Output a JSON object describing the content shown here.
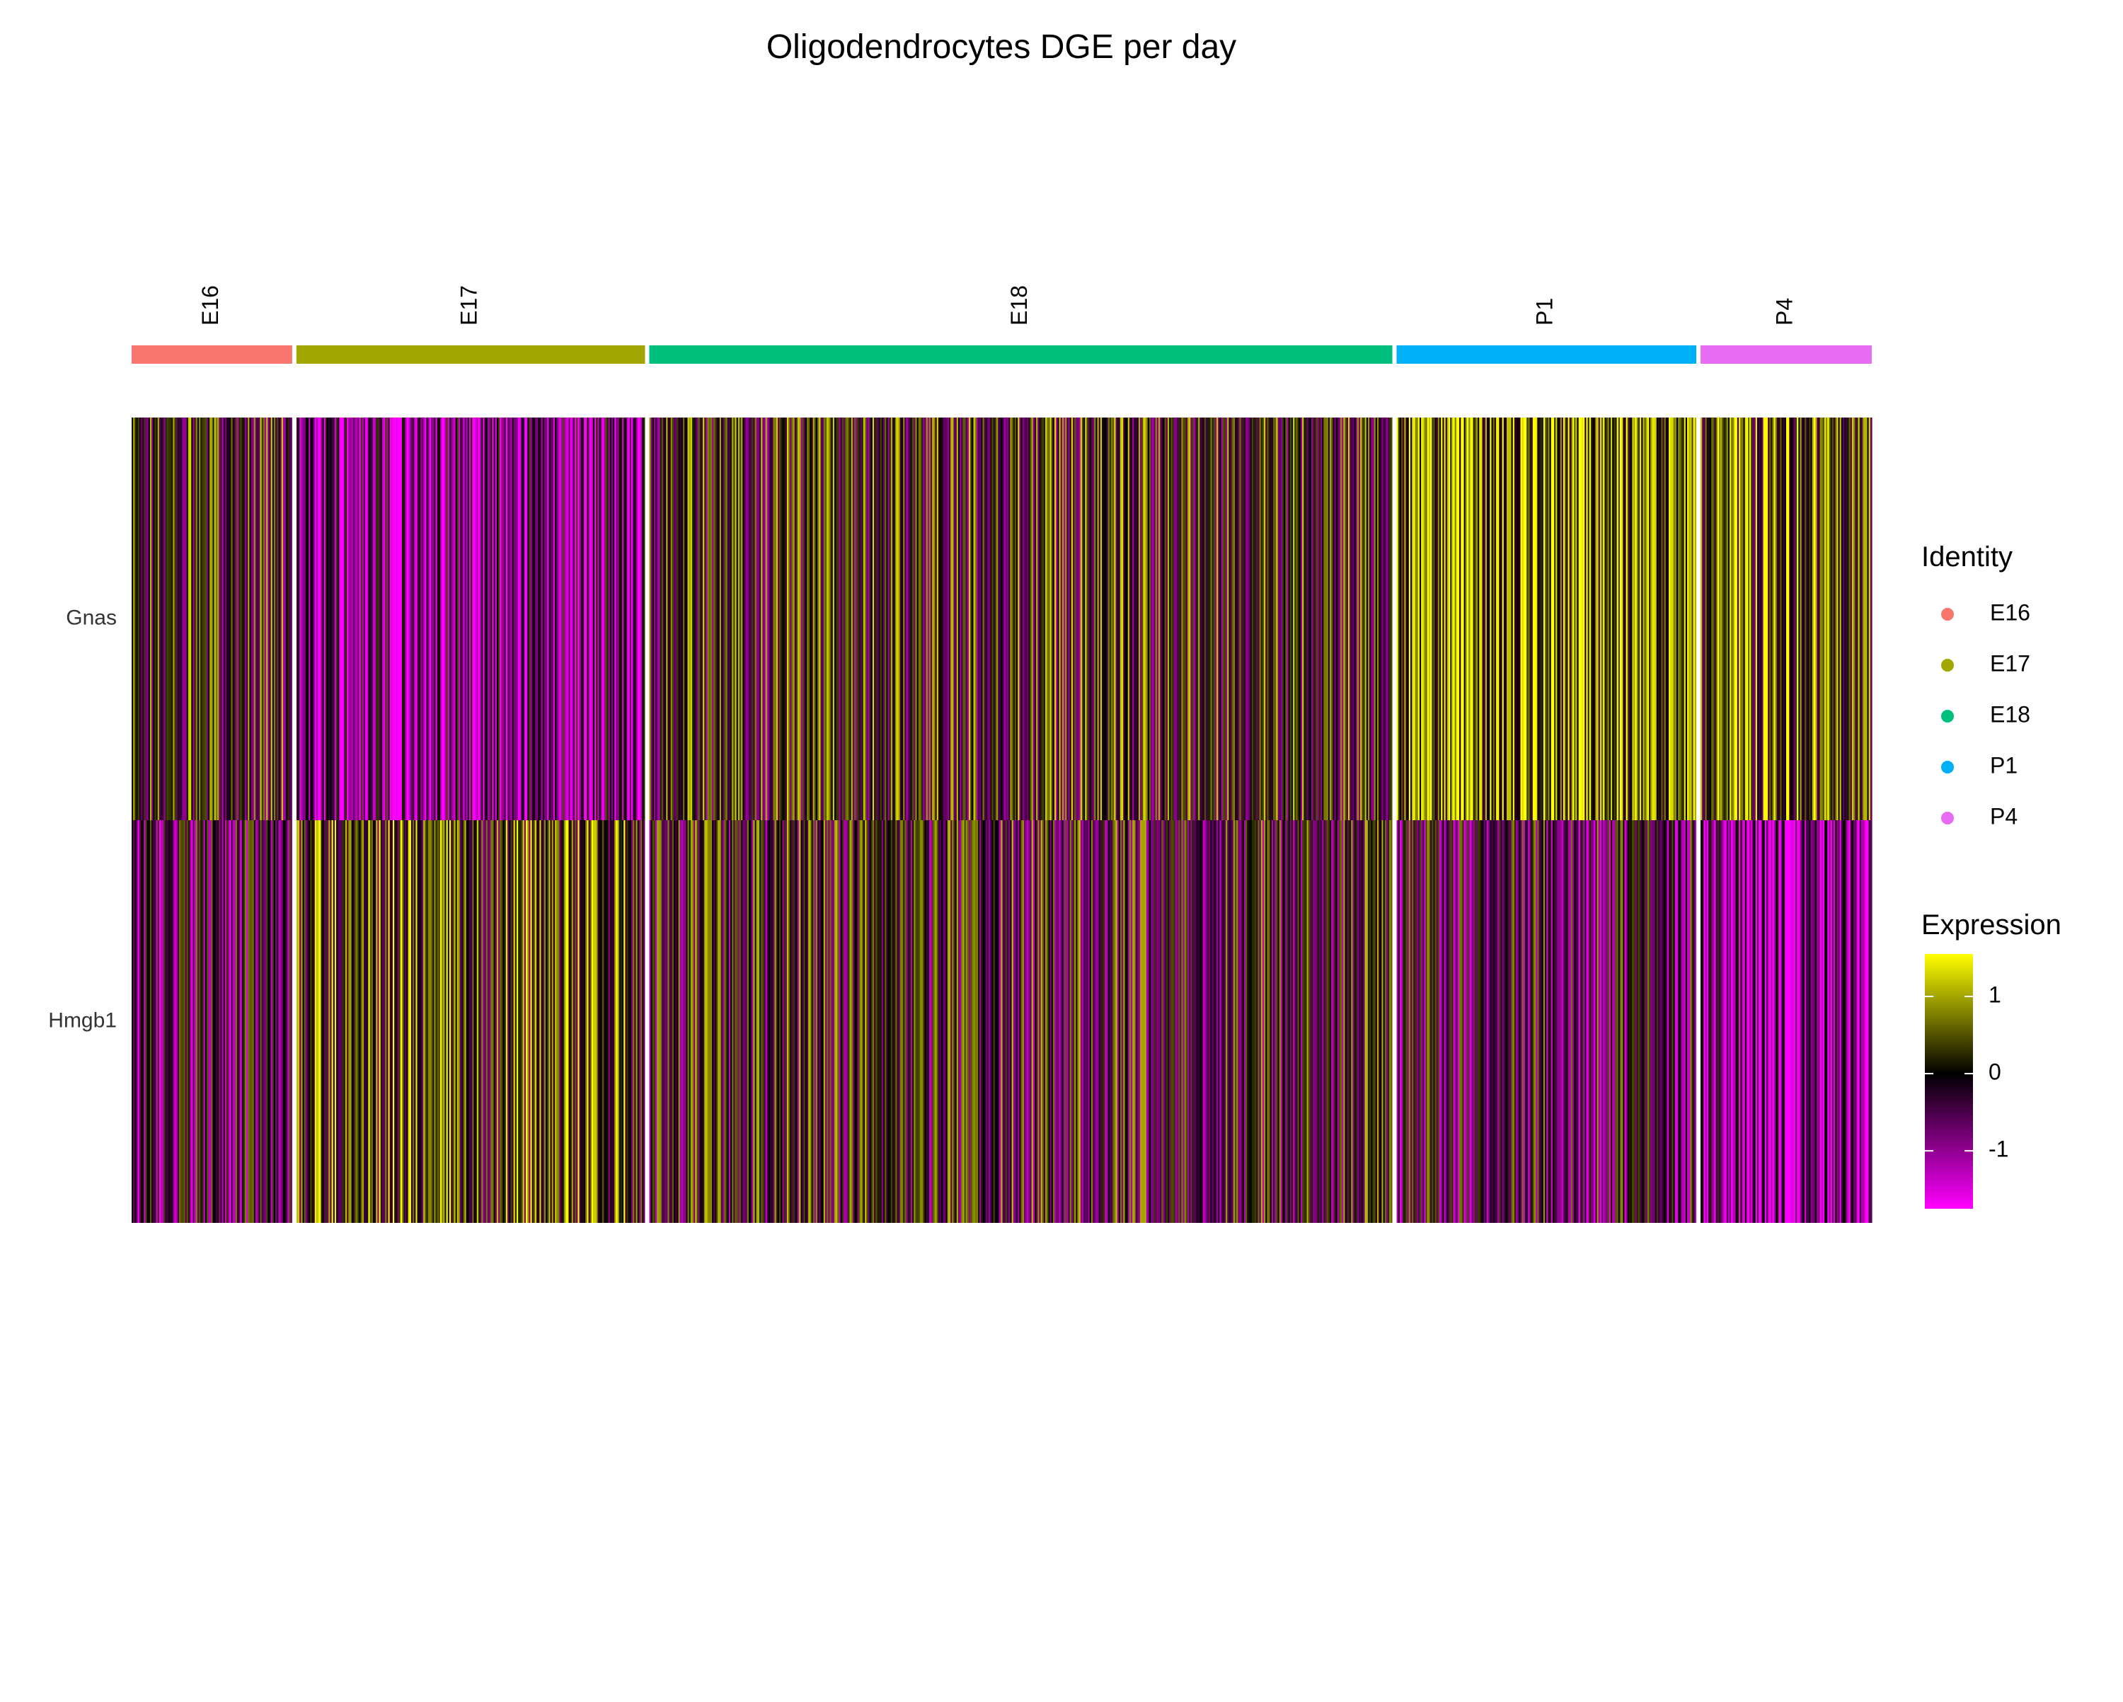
{
  "chart_data": {
    "type": "heatmap",
    "title": "Oligodendrocytes DGE per day",
    "genes": [
      "Gnas",
      "Hmgb1"
    ],
    "groups": [
      {
        "name": "E16",
        "color": "#F8766D",
        "cells": 105
      },
      {
        "name": "E17",
        "color": "#A3A500",
        "cells": 228
      },
      {
        "name": "E18",
        "color": "#00BF7D",
        "cells": 486
      },
      {
        "name": "P1",
        "color": "#00B0F6",
        "cells": 196
      },
      {
        "name": "P4",
        "color": "#E76BF3",
        "cells": 112
      }
    ],
    "legend_identity": {
      "title": "Identity",
      "entries": [
        "E16",
        "E17",
        "E18",
        "P1",
        "P4"
      ]
    },
    "legend_expression": {
      "title": "Expression",
      "range": [
        -1.75,
        1.55
      ],
      "ticks": [
        1,
        0,
        -1
      ],
      "colors": {
        "low": "#FF00FF",
        "mid": "#000000",
        "high": "#FFFF00"
      }
    },
    "mean_expression": {
      "Gnas": {
        "E16": 0.0,
        "E17": -0.85,
        "E18": 0.05,
        "P1": 0.75,
        "P4": 0.45
      },
      "Hmgb1": {
        "E16": -0.5,
        "E17": 0.35,
        "E18": -0.1,
        "P1": -0.35,
        "P4": -1.1
      }
    }
  }
}
